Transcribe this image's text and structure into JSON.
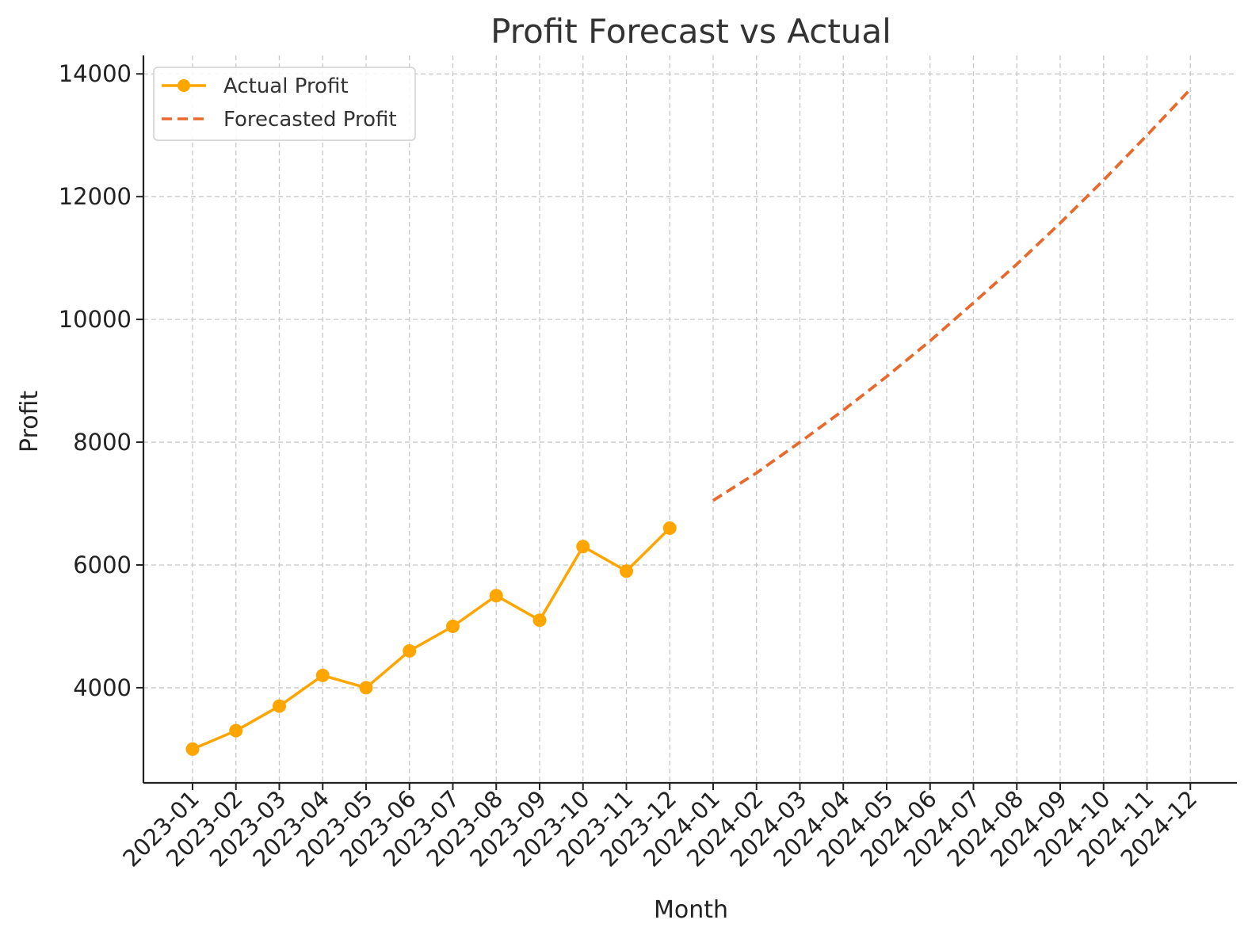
{
  "chart_data": {
    "type": "line",
    "title": "Profit Forecast vs Actual",
    "xlabel": "Month",
    "ylabel": "Profit",
    "categories": [
      "2023-01",
      "2023-02",
      "2023-03",
      "2023-04",
      "2023-05",
      "2023-06",
      "2023-07",
      "2023-08",
      "2023-09",
      "2023-10",
      "2023-11",
      "2023-12",
      "2024-01",
      "2024-02",
      "2024-03",
      "2024-04",
      "2024-05",
      "2024-06",
      "2024-07",
      "2024-08",
      "2024-09",
      "2024-10",
      "2024-11",
      "2024-12"
    ],
    "yticks": [
      4000,
      6000,
      8000,
      10000,
      12000,
      14000
    ],
    "ylim": [
      2450,
      14300
    ],
    "grid": true,
    "legend": "top-left",
    "series": [
      {
        "name": "Actual Profit",
        "style": "solid-markers",
        "color": "#FFA500",
        "x": [
          "2023-01",
          "2023-02",
          "2023-03",
          "2023-04",
          "2023-05",
          "2023-06",
          "2023-07",
          "2023-08",
          "2023-09",
          "2023-10",
          "2023-11",
          "2023-12"
        ],
        "values": [
          3000,
          3300,
          3700,
          4200,
          4000,
          4600,
          5000,
          5500,
          5100,
          6300,
          5900,
          6600
        ]
      },
      {
        "name": "Forecasted Profit",
        "style": "dashed",
        "color": "#E8692C",
        "x": [
          "2024-01",
          "2024-02",
          "2024-03",
          "2024-04",
          "2024-05",
          "2024-06",
          "2024-07",
          "2024-08",
          "2024-09",
          "2024-10",
          "2024-11",
          "2024-12"
        ],
        "values": [
          7050,
          7500,
          8000,
          8520,
          9070,
          9650,
          10270,
          10900,
          11570,
          12270,
          13000,
          13750
        ]
      }
    ]
  }
}
